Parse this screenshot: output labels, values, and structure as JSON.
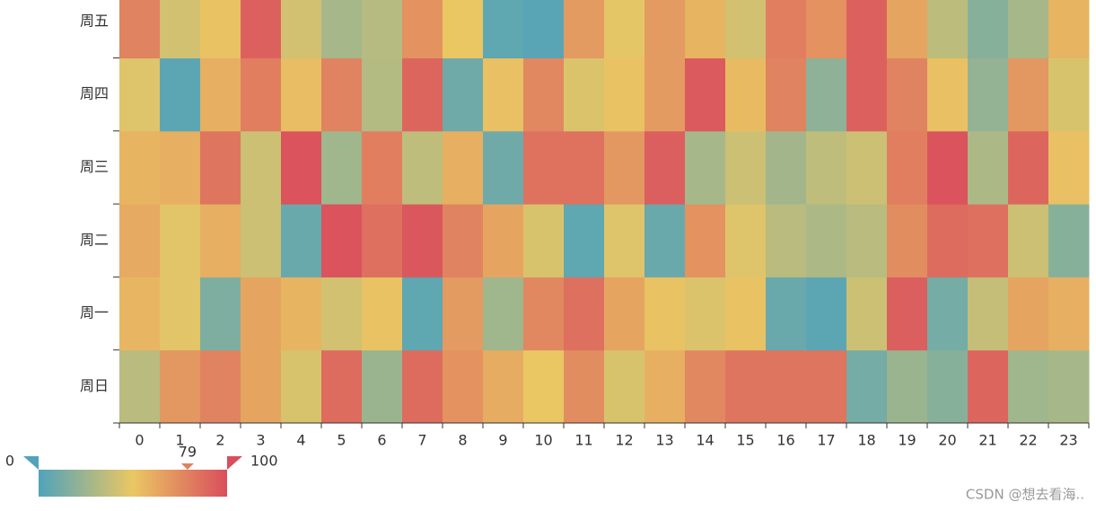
{
  "chart_data": {
    "type": "heatmap",
    "x_categories": [
      "0",
      "1",
      "2",
      "3",
      "4",
      "5",
      "6",
      "7",
      "8",
      "9",
      "10",
      "11",
      "12",
      "13",
      "14",
      "15",
      "16",
      "17",
      "18",
      "19",
      "20",
      "21",
      "22",
      "23"
    ],
    "y_categories": [
      "周日",
      "周一",
      "周二",
      "周三",
      "周四",
      "周五"
    ],
    "values": [
      [
        34,
        70,
        78,
        64,
        44,
        88,
        24,
        88,
        72,
        61,
        50,
        74,
        44,
        60,
        76,
        84,
        84,
        84,
        12,
        24,
        18,
        90,
        26,
        28
      ],
      [
        57,
        47,
        15,
        64,
        58,
        42,
        52,
        5,
        68,
        26,
        76,
        86,
        64,
        52,
        45,
        52,
        8,
        4,
        40,
        93,
        12,
        38,
        64,
        60
      ],
      [
        62,
        47,
        60,
        40,
        8,
        98,
        86,
        96,
        78,
        64,
        44,
        5,
        46,
        8,
        72,
        46,
        34,
        30,
        34,
        74,
        88,
        86,
        40,
        18
      ],
      [
        58,
        60,
        84,
        40,
        98,
        26,
        80,
        36,
        60,
        10,
        85,
        85,
        70,
        93,
        28,
        40,
        27,
        36,
        40,
        80,
        98,
        30,
        90,
        53
      ],
      [
        46,
        4,
        60,
        80,
        54,
        78,
        32,
        90,
        10,
        53,
        76,
        45,
        52,
        68,
        95,
        55,
        78,
        20,
        92,
        78,
        53,
        22,
        70,
        44
      ],
      [
        78,
        42,
        52,
        92,
        42,
        28,
        33,
        72,
        50,
        5,
        3,
        68,
        48,
        68,
        58,
        42,
        80,
        72,
        92,
        64,
        35,
        18,
        28,
        58
      ]
    ],
    "colors": [
      "#50a3ba",
      "#eac763",
      "#d94e5d"
    ],
    "visual_map": {
      "min": 0,
      "max": 100,
      "handle_value": 79
    },
    "watermark": "CSDN @想去看海.."
  }
}
